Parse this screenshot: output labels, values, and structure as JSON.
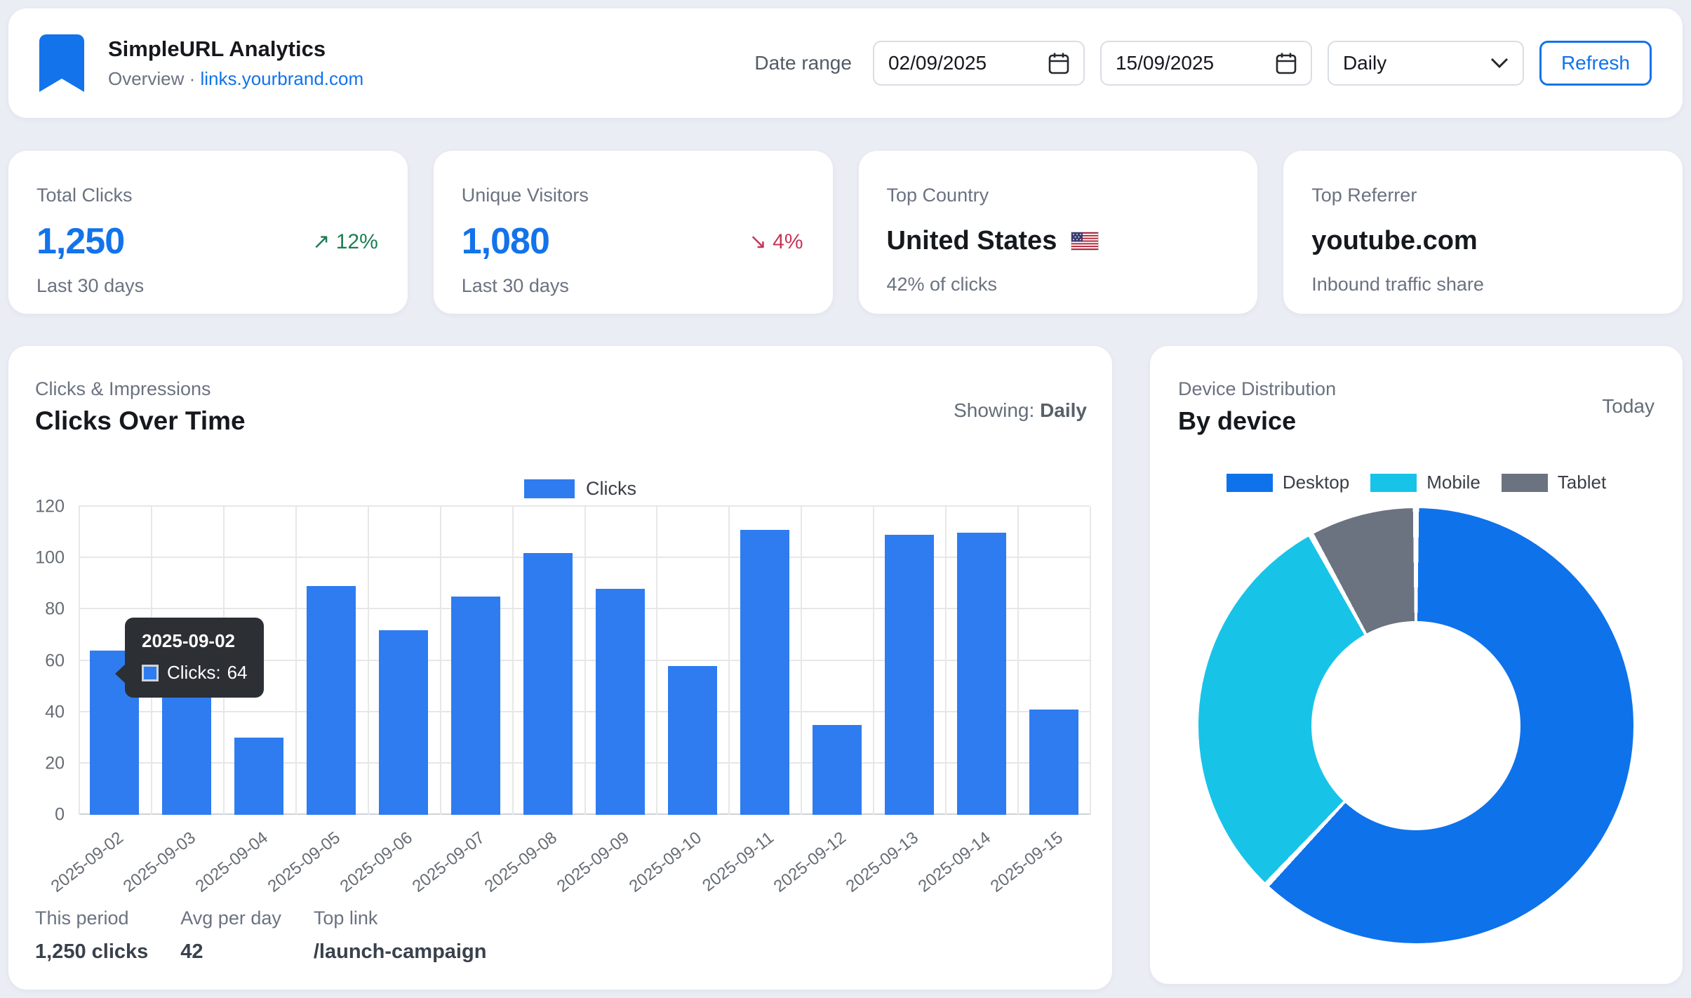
{
  "header": {
    "title": "SimpleURL Analytics",
    "subtitle_prefix": "Overview ·",
    "subtitle_link": "links.yourbrand.com",
    "date_range_label": "Date range",
    "date_from": "02/09/2025",
    "date_to": "15/09/2025",
    "granularity": "Daily",
    "refresh_label": "Refresh"
  },
  "stats": [
    {
      "label": "Total Clicks",
      "value": "1,250",
      "trend_arrow": "↗",
      "trend": "12%",
      "trend_dir": "up",
      "sub": "Last 30 days"
    },
    {
      "label": "Unique Visitors",
      "value": "1,080",
      "trend_arrow": "↘",
      "trend": "4%",
      "trend_dir": "down",
      "sub": "Last 30 days"
    },
    {
      "label": "Top Country",
      "value": "United States",
      "flag": "us-flag",
      "sub": "42% of clicks"
    },
    {
      "label": "Top Referrer",
      "value": "youtube.com",
      "sub": "Inbound traffic share"
    }
  ],
  "clicks_card": {
    "eyebrow": "Clicks & Impressions",
    "title": "Clicks Over Time",
    "showing_label": "Showing:",
    "showing_value": "Daily",
    "tooltip": {
      "title": "2025-09-02",
      "label": "Clicks:",
      "value": "64"
    },
    "footer": [
      {
        "label": "This period",
        "value": "1,250 clicks"
      },
      {
        "label": "Avg per day",
        "value": "42"
      },
      {
        "label": "Top link",
        "value": "/launch-campaign"
      }
    ]
  },
  "device_card": {
    "eyebrow": "Device Distribution",
    "title": "By device",
    "period": "Today"
  },
  "chart_data": [
    {
      "type": "bar",
      "title": "Clicks Over Time",
      "categories": [
        "2025-09-02",
        "2025-09-03",
        "2025-09-04",
        "2025-09-05",
        "2025-09-06",
        "2025-09-07",
        "2025-09-08",
        "2025-09-09",
        "2025-09-10",
        "2025-09-11",
        "2025-09-12",
        "2025-09-13",
        "2025-09-14",
        "2025-09-15"
      ],
      "series": [
        {
          "name": "Clicks",
          "values": [
            64,
            48,
            30,
            89,
            72,
            85,
            102,
            88,
            58,
            111,
            35,
            109,
            110,
            41
          ]
        }
      ],
      "xlabel": "",
      "ylabel": "",
      "ylim": [
        0,
        120
      ],
      "yticks": [
        0,
        20,
        40,
        60,
        80,
        100,
        120
      ],
      "grid": true,
      "legend_position": "top",
      "bar_color": "#2e7cf0"
    },
    {
      "type": "pie",
      "donut": true,
      "title": "Device Distribution",
      "labels": [
        "Desktop",
        "Mobile",
        "Tablet"
      ],
      "values": [
        62,
        30,
        8
      ],
      "colors": [
        "#0e72ea",
        "#18c3e8",
        "#6b7280"
      ],
      "legend_position": "top"
    }
  ],
  "colors": {
    "accent_blue": "#1273eb",
    "bar_blue": "#2e7cf0",
    "trend_green": "#1c7e52",
    "trend_red": "#c73558",
    "mobile_cyan": "#18c3e8",
    "tablet_gray": "#6b7280",
    "page_bg": "#ebedf5"
  }
}
